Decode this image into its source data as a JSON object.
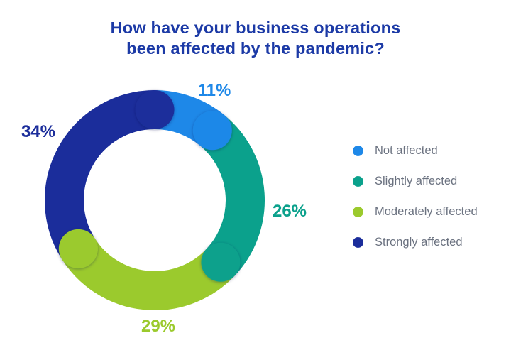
{
  "title": {
    "line1": "How have your business operations",
    "line2": "been affected by the pandemic?",
    "color": "#1C3AA6"
  },
  "chart_data": {
    "type": "pie",
    "subtype": "donut",
    "title": "How have your business operations been affected by the pandemic?",
    "unit": "%",
    "total": 100,
    "direction": "clockwise",
    "start_angle_deg": 0,
    "rounded_segment_caps": true,
    "legend_position": "right",
    "categories": [
      "Not affected",
      "Slightly affected",
      "Moderately affected",
      "Strongly affected"
    ],
    "values": [
      11,
      26,
      29,
      34
    ],
    "segments": [
      {
        "label": "Not affected",
        "value": 11,
        "display": "11%",
        "color": "#1E88E8"
      },
      {
        "label": "Slightly affected",
        "value": 26,
        "display": "26%",
        "color": "#0BA18C"
      },
      {
        "label": "Moderately affected",
        "value": 29,
        "display": "29%",
        "color": "#9BCA2D"
      },
      {
        "label": "Strongly affected",
        "value": 34,
        "display": "34%",
        "color": "#1B2D9B"
      }
    ]
  },
  "legend": {
    "text_color": "#6B7280"
  }
}
